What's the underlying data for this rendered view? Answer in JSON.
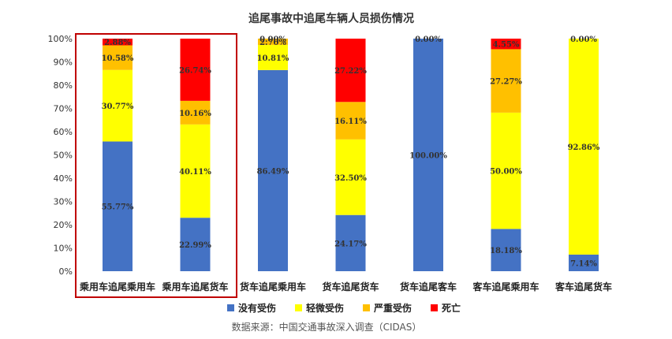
{
  "chart_data": {
    "type": "bar",
    "stacked": "percent",
    "title": "追尾事故中追尾车辆人员损伤情况",
    "xlabel": "",
    "ylabel": "",
    "ylim": [
      0,
      100
    ],
    "yticks": [
      "0%",
      "10%",
      "20%",
      "30%",
      "40%",
      "50%",
      "60%",
      "70%",
      "80%",
      "90%",
      "100%"
    ],
    "categories": [
      "乘用车追尾乘用车",
      "乘用车追尾货车",
      "货车追尾乘用车",
      "货车追尾货车",
      "货车追尾客车",
      "客车追尾乘用车",
      "客车追尾货车"
    ],
    "series": [
      {
        "name": "没有受伤",
        "color": "#4472C4",
        "values": [
          55.77,
          22.99,
          86.49,
          24.17,
          100.0,
          18.18,
          7.14
        ],
        "labels": [
          "55.77%",
          "22.99%",
          "86.49%",
          "24.17%",
          "100.00%",
          "18.18%",
          "7.14%"
        ]
      },
      {
        "name": "轻微受伤",
        "color": "#FFFF00",
        "values": [
          30.77,
          40.11,
          10.81,
          32.5,
          0,
          50.0,
          92.86
        ],
        "labels": [
          "30.77%",
          "40.11%",
          "10.81%",
          "32.50%",
          "",
          "50.00%",
          "92.86%"
        ]
      },
      {
        "name": "严重受伤",
        "color": "#FFC000",
        "values": [
          10.58,
          10.16,
          2.7,
          16.11,
          0,
          27.27,
          0
        ],
        "labels": [
          "10.58%",
          "10.16%",
          "2.70%",
          "16.11%",
          "",
          "27.27%",
          ""
        ]
      },
      {
        "name": "死亡",
        "color": "#FF0000",
        "values": [
          2.88,
          26.74,
          0,
          27.22,
          0,
          4.55,
          0
        ],
        "labels": [
          "2.88%",
          "26.74%",
          "0.00%",
          "27.22%",
          "0.00%",
          "4.55%",
          "0.00%"
        ]
      }
    ],
    "legend": "bottom",
    "grid": false,
    "highlight_box_color": "#C00000",
    "source_note": "数据来源：中国交通事故深入调查（CIDAS）"
  }
}
